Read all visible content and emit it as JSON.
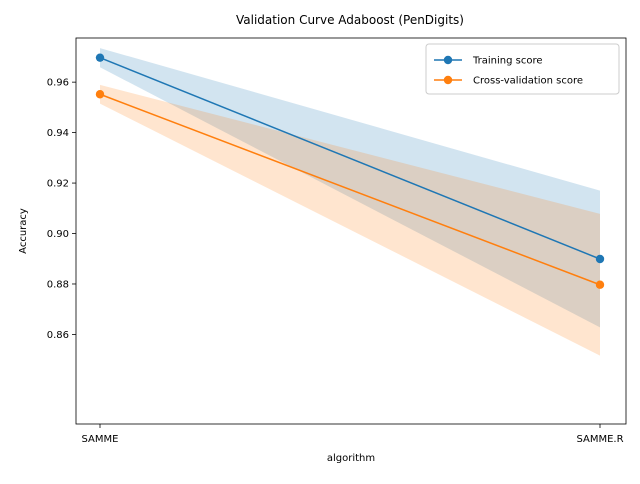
{
  "chart_data": {
    "type": "line",
    "title": "Validation Curve Adaboost (PenDigits)",
    "xlabel": "algorithm",
    "ylabel": "Accuracy",
    "categories": [
      "SAMME",
      "SAMME.R"
    ],
    "ylim": [
      0.8245,
      0.9775
    ],
    "yticks": [
      0.86,
      0.88,
      0.9,
      0.92,
      0.94,
      0.96
    ],
    "ytick_labels": [
      "0.86",
      "0.88",
      "0.90",
      "0.92",
      "0.94",
      "0.96"
    ],
    "grid": false,
    "legend_position": "top-right",
    "series": [
      {
        "name": "Training score",
        "color": "#1f77b4",
        "band_color": "#1f77b4",
        "values": [
          0.9697,
          0.8899
        ],
        "lower": [
          0.9659,
          0.8628
        ],
        "upper": [
          0.9735,
          0.917
        ]
      },
      {
        "name": "Cross-validation score",
        "color": "#ff7f0e",
        "band_color": "#ff7f0e",
        "values": [
          0.9552,
          0.8797
        ],
        "lower": [
          0.9515,
          0.8516
        ],
        "upper": [
          0.9589,
          0.9078
        ]
      }
    ]
  }
}
